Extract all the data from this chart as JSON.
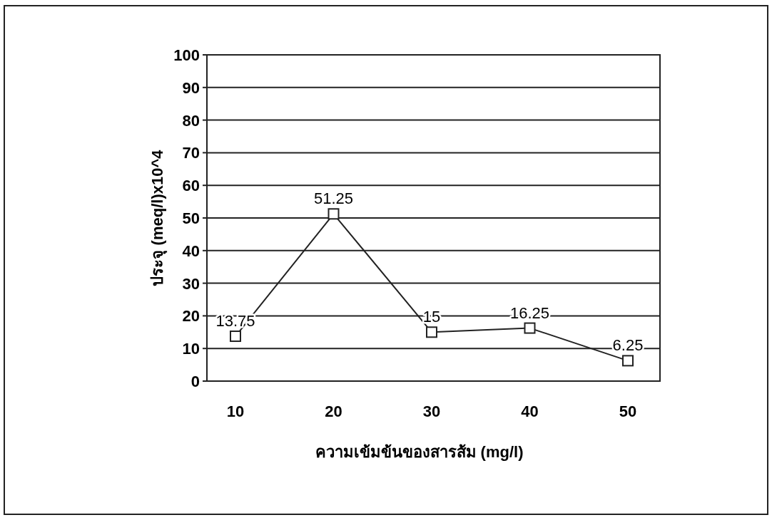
{
  "chart_data": {
    "type": "line",
    "xlabel": "ความเข้มข้นของสารส้ม (mg/l)",
    "ylabel": "ประจุ (meq/l)x10^4",
    "categories": [
      "10",
      "20",
      "30",
      "40",
      "50"
    ],
    "series": [
      {
        "color": "#222222",
        "values": [
          13.75,
          51.25,
          15,
          16.25,
          6.25
        ]
      }
    ],
    "ylim": [
      0,
      100
    ],
    "yticks": [
      0,
      10,
      20,
      30,
      40,
      50,
      60,
      70,
      80,
      90,
      100
    ],
    "grid": "y",
    "marker": "square",
    "line_style": "solid",
    "data_labels": true
  }
}
